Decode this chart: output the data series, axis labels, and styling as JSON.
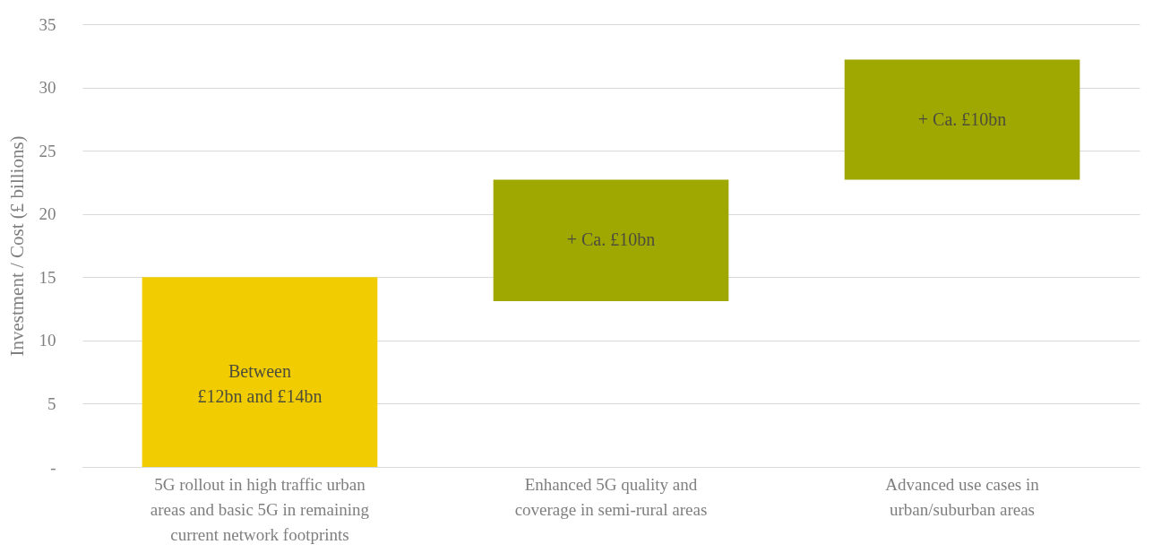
{
  "chart_data": {
    "type": "bar",
    "ylabel": "Investment / Cost (£ billions)",
    "categories": [
      "5G rollout in high traffic urban areas and basic 5G in remaining current network footprints",
      "Enhanced 5G quality and coverage in semi-rural areas",
      "Advanced use cases in urban/suburban areas"
    ],
    "base": [
      0,
      13.1,
      22.7
    ],
    "values": [
      15,
      9.6,
      9.5
    ],
    "colors": [
      "#f0cc00",
      "#9fa800",
      "#9fa800"
    ],
    "value_labels": [
      "Between\n£12bn and £14bn",
      "+ Ca. £10bn",
      "+ Ca. £10bn"
    ],
    "ylim": [
      0,
      35
    ],
    "yticks": [
      {
        "value": 0,
        "label": "-"
      },
      5,
      10,
      15,
      20,
      25,
      30,
      35
    ],
    "grid": "y"
  }
}
